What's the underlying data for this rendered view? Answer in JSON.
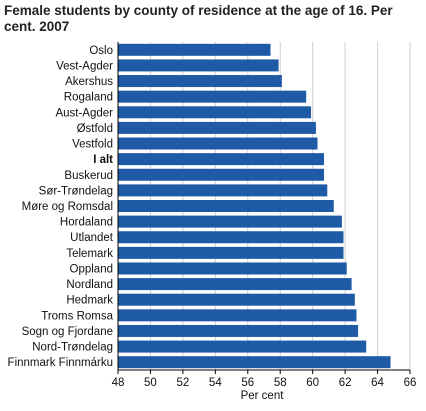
{
  "chart_data": {
    "type": "bar",
    "orientation": "horizontal",
    "title": "Female students by county of residence at the age of 16. Per cent. 2007",
    "xlabel": "Per cent",
    "ylabel": "",
    "xlim": [
      48,
      66
    ],
    "xticks": [
      48,
      50,
      52,
      54,
      56,
      58,
      60,
      62,
      64,
      66
    ],
    "grid": true,
    "bar_color": "#1f5aa6",
    "highlight_category": "I alt",
    "categories": [
      "Oslo",
      "Vest-Agder",
      "Akershus",
      "Rogaland",
      "Aust-Agder",
      "Østfold",
      "Vestfold",
      "I alt",
      "Buskerud",
      "Sør-Trøndelag",
      "Møre og Romsdal",
      "Hordaland",
      "Utlandet",
      "Telemark",
      "Oppland",
      "Nordland",
      "Hedmark",
      "Troms Romsa",
      "Sogn og Fjordane",
      "Nord-Trøndelag",
      "Finnmark Finnmárku"
    ],
    "values": [
      57.4,
      57.9,
      58.1,
      59.6,
      59.9,
      60.2,
      60.3,
      60.7,
      60.7,
      60.9,
      61.3,
      61.8,
      61.9,
      61.9,
      62.1,
      62.4,
      62.6,
      62.7,
      62.8,
      63.3,
      64.8
    ]
  }
}
